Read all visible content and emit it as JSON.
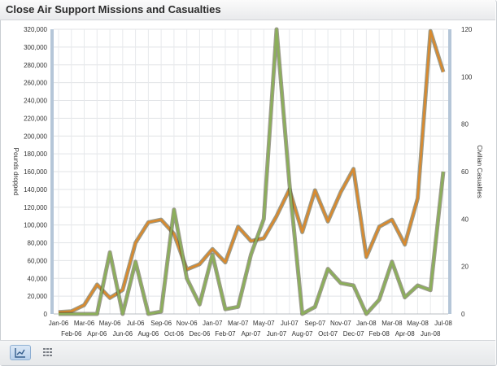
{
  "header": {
    "title": "Close Air Support Missions and Casualties"
  },
  "toolbar": {
    "chart_view": "line-chart-icon",
    "table_view": "table-grid-icon"
  },
  "chart_data": {
    "type": "line",
    "title": "Close Air Support Missions and Casualties",
    "xlabel": "",
    "ylabel": "Pounds dropped",
    "y2label": "Civilian Casualties",
    "ylim": [
      0,
      320000
    ],
    "y2lim": [
      0,
      120
    ],
    "yticks": [
      "0",
      "20,000",
      "40,000",
      "60,000",
      "80,000",
      "100,000",
      "120,000",
      "140,000",
      "160,000",
      "180,000",
      "200,000",
      "220,000",
      "240,000",
      "260,000",
      "280,000",
      "300,000",
      "320,000"
    ],
    "y2ticks": [
      "0",
      "20",
      "40",
      "60",
      "80",
      "100",
      "120"
    ],
    "categories": [
      "Jan-06",
      "Feb-06",
      "Mar-06",
      "Apr-06",
      "May-06",
      "Jun-06",
      "Jul-06",
      "Aug-06",
      "Sep-06",
      "Oct-06",
      "Nov-06",
      "Dec-06",
      "Jan-07",
      "Feb-07",
      "Mar-07",
      "Apr-07",
      "May-07",
      "Jun-07",
      "Jul-07",
      "Aug-07",
      "Sep-07",
      "Oct-07",
      "Nov-07",
      "Dec-07",
      "Jan-08",
      "Feb-08",
      "Mar-08",
      "Apr-08",
      "May-08",
      "Jun-08",
      "Jul-08"
    ],
    "series": [
      {
        "name": "Pounds dropped",
        "axis": "left",
        "color": "#d98a2e",
        "values": [
          2000,
          3000,
          10000,
          33000,
          18000,
          27000,
          80000,
          103000,
          106000,
          90000,
          50000,
          56000,
          73000,
          58000,
          98000,
          82000,
          85000,
          110000,
          140000,
          92000,
          139000,
          104000,
          137000,
          163000,
          64000,
          98000,
          106000,
          78000,
          130000,
          318000,
          272000
        ]
      },
      {
        "name": "Civilian Casualties",
        "axis": "right",
        "color": "#8caf5a",
        "values": [
          0,
          0,
          0,
          0,
          26,
          0,
          22,
          0,
          1,
          44,
          15,
          4,
          25,
          2,
          3,
          25,
          40,
          120,
          55,
          0,
          3,
          19,
          13,
          12,
          0,
          6,
          22,
          7,
          12,
          10,
          60
        ]
      }
    ],
    "grid": true,
    "legend": "none"
  }
}
